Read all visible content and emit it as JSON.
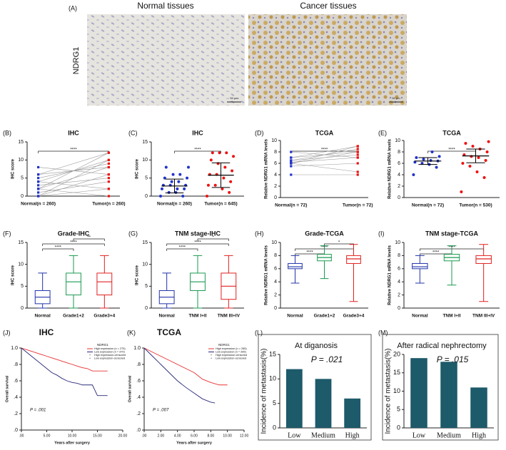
{
  "figure_a": {
    "label": "(A)",
    "titles": [
      "Normal tissues",
      "Cancer tissues"
    ],
    "marker": "NDRG1",
    "scale_bars": [
      "50 μm",
      "50 μm"
    ]
  },
  "chart_data": [
    {
      "type": "paired",
      "label": "(B)",
      "title": "IHC",
      "ylabel": "IHC score",
      "categories": [
        "Normal(n = 260)",
        "Tumor(n = 260)"
      ],
      "colors": [
        "#2233cc",
        "#ee1111"
      ],
      "ylim": [
        0,
        15
      ],
      "yticks": [
        0,
        5,
        10,
        15
      ],
      "pairs": [
        [
          0,
          2
        ],
        [
          0,
          6
        ],
        [
          1,
          4
        ],
        [
          2,
          8
        ],
        [
          2,
          12
        ],
        [
          3,
          5
        ],
        [
          4,
          10
        ],
        [
          4,
          2
        ],
        [
          6,
          8
        ],
        [
          6,
          12
        ],
        [
          8,
          6
        ],
        [
          0,
          10
        ],
        [
          2,
          0
        ],
        [
          5,
          9
        ]
      ],
      "significance": [
        {
          "groups": [
            "Normal(n = 260)",
            "Tumor(n = 260)"
          ],
          "label": "****"
        }
      ]
    },
    {
      "type": "dot",
      "label": "(C)",
      "title": "IHC",
      "ylabel": "IHC score",
      "categories": [
        "Normal(n = 260)",
        "Tumor(n = 645)"
      ],
      "colors": [
        "#2233cc",
        "#ee1111"
      ],
      "ylim": [
        0,
        15
      ],
      "yticks": [
        0,
        5,
        10,
        15
      ],
      "values": [
        [
          0,
          0,
          1,
          1,
          2,
          2,
          2,
          3,
          3,
          3,
          4,
          4,
          5,
          5,
          6,
          6,
          8,
          8
        ],
        [
          0,
          1,
          2,
          3,
          3,
          4,
          5,
          6,
          6,
          7,
          8,
          9,
          10,
          11,
          12,
          12,
          12
        ]
      ],
      "mean": [
        2.8,
        5.8
      ],
      "sd": [
        1.9,
        3.4
      ],
      "significance": [
        {
          "groups": [
            "Normal(n = 260)",
            "Tumor(n = 645)"
          ],
          "label": "****"
        }
      ]
    },
    {
      "type": "paired",
      "label": "(D)",
      "title": "TCGA",
      "ylabel": "Relative NDRG1 mRNA levels",
      "categories": [
        "Normal(n = 72)",
        "Tumor(n = 72)"
      ],
      "colors": [
        "#2233cc",
        "#ee1111"
      ],
      "ylim": [
        0,
        10
      ],
      "yticks": [
        0,
        2,
        4,
        6,
        8,
        10
      ],
      "pairs": [
        [
          6,
          8
        ],
        [
          6.5,
          7.5
        ],
        [
          7,
          9
        ],
        [
          5.5,
          6
        ],
        [
          6,
          9
        ],
        [
          8,
          7
        ],
        [
          4,
          4
        ],
        [
          6.5,
          8.5
        ],
        [
          7,
          8
        ],
        [
          6,
          4.5
        ],
        [
          6.2,
          7
        ]
      ],
      "significance": [
        {
          "groups": [
            "Normal(n = 72)",
            "Tumor(n = 72)"
          ],
          "label": "****"
        }
      ]
    },
    {
      "type": "dot",
      "label": "(E)",
      "title": "TCGA",
      "ylabel": "Relative NDRG1 mRNA levels",
      "categories": [
        "Normal(n = 72)",
        "Tumor(n = 530)"
      ],
      "colors": [
        "#2233cc",
        "#ee1111"
      ],
      "ylim": [
        0,
        10
      ],
      "yticks": [
        0,
        2,
        4,
        6,
        8,
        10
      ],
      "values": [
        [
          4,
          5.3,
          5.8,
          6,
          6.2,
          6.4,
          6.5,
          6.7,
          7,
          7.2,
          8
        ],
        [
          1,
          3.5,
          4.5,
          5.5,
          6,
          6.5,
          7,
          7.2,
          7.5,
          8,
          8.5,
          9,
          9.5,
          9.8
        ]
      ],
      "mean": [
        6.4,
        7.3
      ],
      "sd": [
        0.6,
        1.2
      ],
      "significance": [
        {
          "groups": [
            "Normal(n = 72)",
            "Tumor(n = 530)"
          ],
          "label": "****"
        }
      ]
    },
    {
      "type": "box",
      "label": "(F)",
      "title": "Grade-IHC",
      "ylabel": "IHC score",
      "categories": [
        "Normal",
        "Grade1+2",
        "Grade3+4"
      ],
      "colors": [
        "#2233aa",
        "#1a9a50",
        "#e02020"
      ],
      "ylim": [
        0,
        15
      ],
      "yticks": [
        0,
        5,
        10,
        15
      ],
      "boxes": [
        [
          0,
          1,
          2.5,
          4,
          8
        ],
        [
          0,
          3,
          6,
          8,
          12
        ],
        [
          0,
          3,
          6,
          8,
          12
        ]
      ],
      "significance": [
        {
          "groups": [
            "Grade1+2",
            "Grade3+4"
          ],
          "label": "**"
        },
        {
          "groups": [
            "Normal",
            "Grade3+4"
          ],
          "label": "****"
        },
        {
          "groups": [
            "Normal",
            "Grade1+2"
          ],
          "label": "****"
        }
      ]
    },
    {
      "type": "box",
      "label": "(G)",
      "title": "TNM stage-IHC",
      "ylabel": "IHC score",
      "categories": [
        "Normal",
        "TNM I+II",
        "TNM III+IV"
      ],
      "colors": [
        "#2233aa",
        "#1a9a50",
        "#e02020"
      ],
      "ylim": [
        0,
        15
      ],
      "yticks": [
        0,
        5,
        10,
        15
      ],
      "boxes": [
        [
          0,
          1,
          2.5,
          4,
          8
        ],
        [
          0,
          4,
          6,
          8,
          12
        ],
        [
          0,
          2,
          5,
          8,
          12
        ]
      ],
      "significance": [
        {
          "groups": [
            "TNM I+II",
            "TNM III+IV"
          ],
          "label": "*"
        },
        {
          "groups": [
            "Normal",
            "TNM III+IV"
          ],
          "label": "****"
        },
        {
          "groups": [
            "Normal",
            "TNM I+II"
          ],
          "label": "****"
        }
      ]
    },
    {
      "type": "box",
      "label": "(H)",
      "title": "Grade-TCGA",
      "ylabel": "Relative NDRG1 mRNA levels",
      "categories": [
        "Normal",
        "Grade1+2",
        "Grade3+4"
      ],
      "colors": [
        "#2233aa",
        "#1a9a50",
        "#e02020"
      ],
      "ylim": [
        0,
        10
      ],
      "yticks": [
        0,
        2,
        4,
        6,
        8,
        10
      ],
      "boxes": [
        [
          3.8,
          6,
          6.3,
          6.8,
          8
        ],
        [
          4.5,
          7.2,
          7.7,
          8.2,
          9.5
        ],
        [
          1,
          6.8,
          7.5,
          8,
          9.7
        ]
      ],
      "significance": [
        {
          "groups": [
            "Grade1+2",
            "Grade3+4"
          ],
          "label": "*"
        },
        {
          "groups": [
            "Normal",
            "Grade3+4"
          ],
          "label": "****"
        },
        {
          "groups": [
            "Normal",
            "Grade1+2"
          ],
          "label": "****"
        }
      ]
    },
    {
      "type": "box",
      "label": "(I)",
      "title": "TNM stage-TCGA",
      "ylabel": "Relative NDRG1 mRNA levels",
      "categories": [
        "Normal",
        "TNM I+II",
        "TNM III+IV"
      ],
      "colors": [
        "#2233aa",
        "#1a9a50",
        "#e02020"
      ],
      "ylim": [
        0,
        10
      ],
      "yticks": [
        0,
        2,
        4,
        6,
        8,
        10
      ],
      "boxes": [
        [
          3.8,
          6,
          6.3,
          6.8,
          8
        ],
        [
          3.5,
          7.2,
          7.7,
          8.2,
          9.5
        ],
        [
          1,
          6.8,
          7.5,
          8,
          9.7
        ]
      ],
      "significance": [
        {
          "groups": [
            "Normal",
            "TNM III+IV"
          ],
          "label": "****"
        },
        {
          "groups": [
            "Normal",
            "TNM I+II"
          ],
          "label": "****"
        }
      ]
    },
    {
      "type": "km",
      "label": "(J)",
      "title": "IHC",
      "xlabel": "Years after surgery",
      "ylabel": "Overall survival",
      "annotation": "P = .001",
      "legend_title": "NDRG1",
      "xlim": [
        0,
        20
      ],
      "xticks": [
        {
          "value": 0,
          "label": ".00"
        },
        {
          "value": 5,
          "label": "5.00"
        },
        {
          "value": 10,
          "label": "10.00"
        },
        {
          "value": 15,
          "label": "15.00"
        },
        {
          "value": 20,
          "label": "20.00"
        }
      ],
      "ylim": [
        0,
        1
      ],
      "yticks": [
        {
          "value": 0,
          "label": ".0"
        },
        {
          "value": 0.2,
          "label": ".2"
        },
        {
          "value": 0.4,
          "label": ".4"
        },
        {
          "value": 0.6,
          "label": ".6"
        },
        {
          "value": 0.8,
          "label": ".8"
        },
        {
          "value": 1,
          "label": "1.0"
        }
      ],
      "series": [
        {
          "name": "High expression (n = 275)",
          "color": "#e83030",
          "x": [
            0,
            1,
            2,
            3,
            4,
            5,
            6,
            7,
            8,
            9,
            10,
            11,
            12,
            13,
            14,
            15,
            16,
            17
          ],
          "values": [
            1,
            0.98,
            0.96,
            0.94,
            0.92,
            0.9,
            0.88,
            0.86,
            0.84,
            0.82,
            0.8,
            0.78,
            0.76,
            0.75,
            0.72,
            0.72,
            0.72,
            0.72
          ]
        },
        {
          "name": "Low expression (n = 370)",
          "color": "#2a2a7a",
          "x": [
            0,
            1,
            2,
            3,
            4,
            5,
            6,
            7,
            8,
            9,
            10,
            11,
            12,
            13,
            14,
            15,
            16,
            17
          ],
          "values": [
            1,
            0.95,
            0.9,
            0.85,
            0.8,
            0.75,
            0.7,
            0.67,
            0.63,
            0.6,
            0.58,
            0.57,
            0.55,
            0.55,
            0.55,
            0.42,
            0.42,
            0.42
          ]
        }
      ],
      "censored_legend": [
        "High expression-censored",
        "Low expression-censored"
      ]
    },
    {
      "type": "km",
      "label": "(K)",
      "title": "TCGA",
      "xlabel": "Years after surgery",
      "ylabel": "Overall survival",
      "annotation": "P = .007",
      "legend_title": "NDRG1",
      "xlim": [
        0,
        12
      ],
      "xticks": [
        {
          "value": 0,
          "label": ".00"
        },
        {
          "value": 2,
          "label": "2.00"
        },
        {
          "value": 4,
          "label": "4.00"
        },
        {
          "value": 6,
          "label": "6.00"
        },
        {
          "value": 8,
          "label": "8.00"
        },
        {
          "value": 10,
          "label": "10.00"
        },
        {
          "value": 12,
          "label": "12.00"
        }
      ],
      "ylim": [
        0,
        1
      ],
      "yticks": [
        {
          "value": 0,
          "label": ".0"
        },
        {
          "value": 0.2,
          "label": ".2"
        },
        {
          "value": 0.4,
          "label": ".4"
        },
        {
          "value": 0.6,
          "label": ".6"
        },
        {
          "value": 0.8,
          "label": ".8"
        },
        {
          "value": 1,
          "label": "1.0"
        }
      ],
      "series": [
        {
          "name": "High expression (n = 265)",
          "color": "#e83030",
          "x": [
            0,
            1,
            2,
            3,
            4,
            5,
            6,
            7,
            8,
            9,
            10
          ],
          "values": [
            1,
            0.95,
            0.9,
            0.85,
            0.8,
            0.75,
            0.7,
            0.62,
            0.58,
            0.55,
            0.55
          ]
        },
        {
          "name": "Low expression (n = 265)",
          "color": "#2a2a7a",
          "x": [
            0,
            1,
            2,
            3,
            4,
            5,
            6,
            7,
            8,
            8.5
          ],
          "values": [
            1,
            0.9,
            0.8,
            0.7,
            0.6,
            0.52,
            0.45,
            0.38,
            0.34,
            0.33
          ]
        }
      ],
      "censored_legend": [
        "High expression-censored",
        "Low expression-censored"
      ]
    },
    {
      "type": "bar",
      "label": "(L)",
      "title": "At diganosis",
      "ylabel": "Incidence of metastasis(%)",
      "annotation": "P = .021",
      "categories": [
        "Low",
        "Medium",
        "High"
      ],
      "values": [
        12,
        10,
        6
      ],
      "color": "#1d5a6a",
      "ylim": [
        0,
        15
      ],
      "yticks": [
        0,
        5,
        10,
        15
      ]
    },
    {
      "type": "bar",
      "label": "(M)",
      "title": "After radical nephrectomy",
      "ylabel": "Incidence of metastasis(%)",
      "annotation": "P = .015",
      "categories": [
        "Low",
        "Medium",
        "High"
      ],
      "values": [
        19,
        18,
        11
      ],
      "color": "#1d5a6a",
      "ylim": [
        0,
        20
      ],
      "yticks": [
        0,
        5,
        10,
        15,
        20
      ]
    }
  ]
}
